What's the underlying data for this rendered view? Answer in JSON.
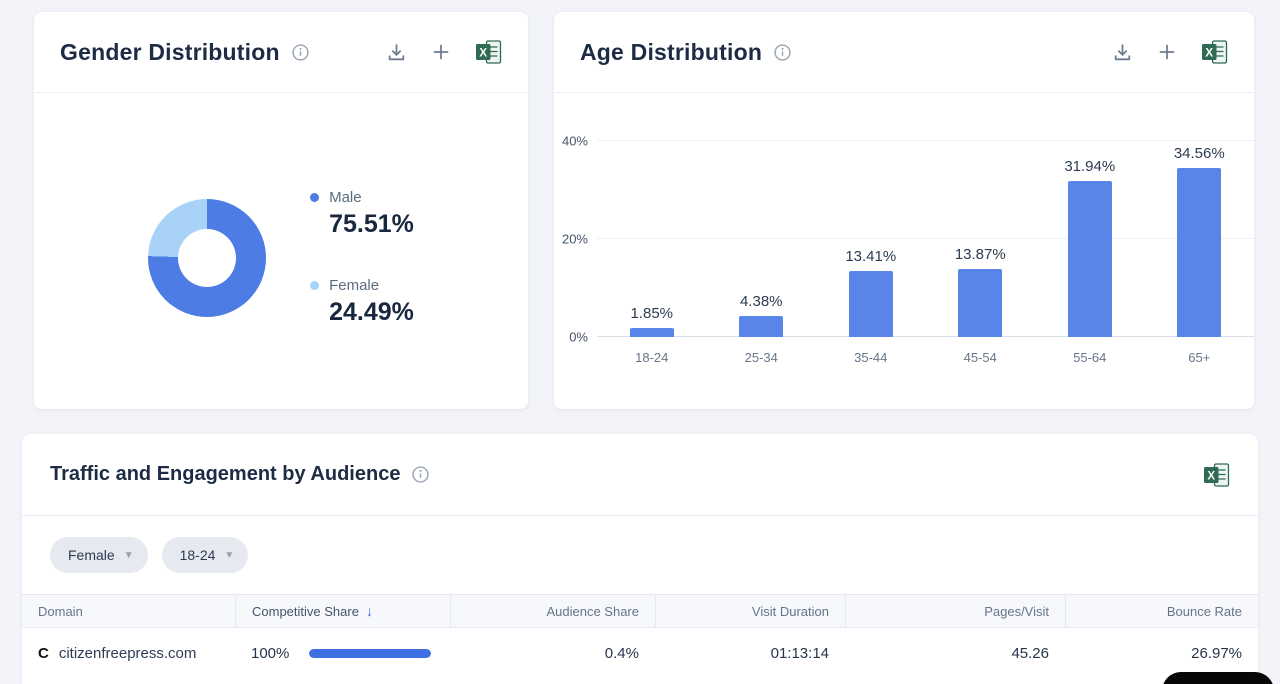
{
  "colors": {
    "male_blue": "#4d7ce4",
    "female_light_blue": "#a8d3f7",
    "bar_blue": "#5a85e8",
    "progress_blue": "#3f6fe3"
  },
  "gender_card": {
    "title": "Gender Distribution"
  },
  "age_card": {
    "title": "Age Distribution"
  },
  "chart_data": [
    {
      "type": "pie",
      "title": "Gender Distribution",
      "labels": [
        "Male",
        "Female"
      ],
      "values": [
        75.51,
        24.49
      ],
      "value_labels": [
        "75.51%",
        "24.49%"
      ],
      "colors": [
        "#4d7ce4",
        "#a8d3f7"
      ],
      "legend_position": "right",
      "donut": true
    },
    {
      "type": "bar",
      "title": "Age Distribution",
      "categories": [
        "18-24",
        "25-34",
        "35-44",
        "45-54",
        "55-64",
        "65+"
      ],
      "values": [
        1.85,
        4.38,
        13.41,
        13.87,
        31.94,
        34.56
      ],
      "value_labels": [
        "1.85%",
        "4.38%",
        "13.41%",
        "13.87%",
        "31.94%",
        "34.56%"
      ],
      "yticks": [
        "0%",
        "20%",
        "40%"
      ],
      "ylim": [
        0,
        40
      ],
      "bar_color": "#5a85e8",
      "grid": true
    }
  ],
  "traffic_card": {
    "title": "Traffic and Engagement by Audience",
    "filters": [
      {
        "label": "Female"
      },
      {
        "label": "18-24"
      }
    ],
    "table": {
      "columns": [
        "Domain",
        "Competitive Share",
        "Audience Share",
        "Visit Duration",
        "Pages/Visit",
        "Bounce Rate"
      ],
      "sorted_column": "Competitive Share",
      "sort_direction": "desc",
      "rows": [
        {
          "favicon": "C",
          "domain": "citizenfreepress.com",
          "competitive_share": "100%",
          "competitive_share_bar_pct": 100,
          "audience_share": "0.4%",
          "visit_duration": "01:13:14",
          "pages_per_visit": "45.26",
          "bounce_rate": "26.97%"
        }
      ]
    }
  }
}
